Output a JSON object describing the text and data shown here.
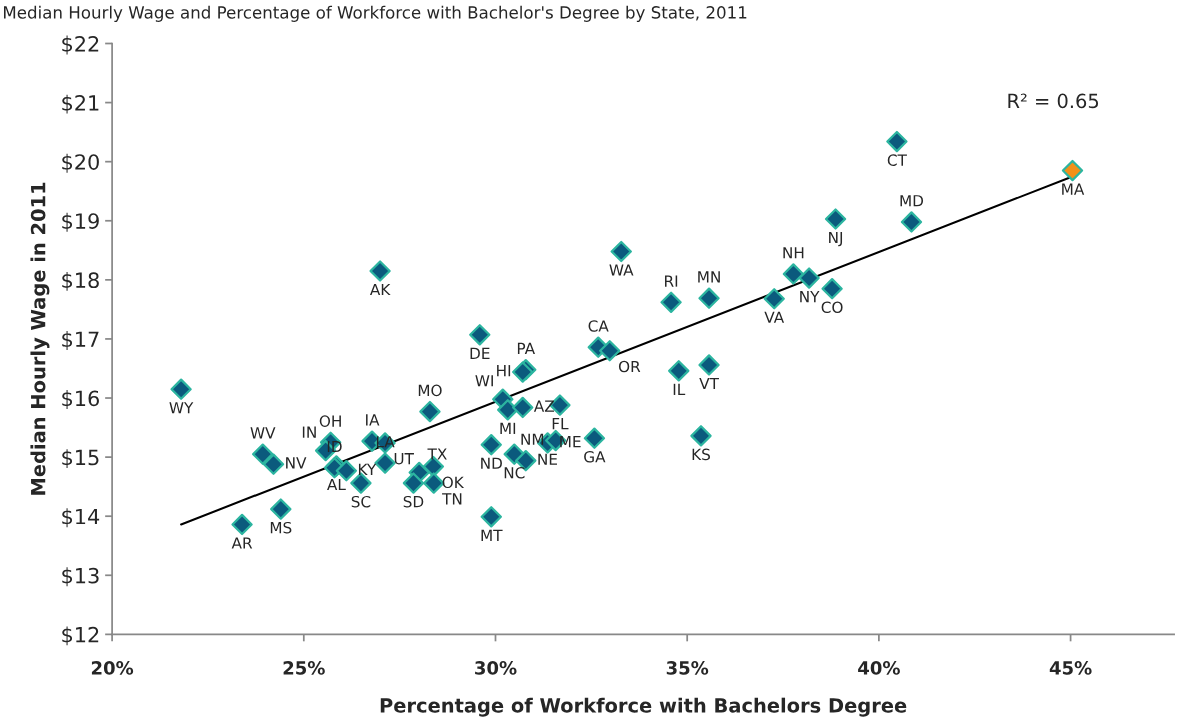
{
  "chart_data": {
    "type": "scatter",
    "title": "Median Hourly Wage and Percentage of Workforce with Bachelor's Degree by State, 2011",
    "xlabel": "Percentage of Workforce with Bachelors Degree",
    "ylabel": "Median Hourly Wage in 2011",
    "annotations": [
      "R² = 0.65"
    ],
    "xlim": [
      20,
      47.7
    ],
    "ylim": [
      12,
      22
    ],
    "xticks": [
      {
        "value": 20,
        "label": "20%"
      },
      {
        "value": 25,
        "label": "25%"
      },
      {
        "value": 30,
        "label": "30%"
      },
      {
        "value": 35,
        "label": "35%"
      },
      {
        "value": 40,
        "label": "40%"
      },
      {
        "value": 45,
        "label": "45%"
      }
    ],
    "yticks": [
      {
        "value": 12,
        "label": "$12"
      },
      {
        "value": 13,
        "label": "$13"
      },
      {
        "value": 14,
        "label": "$14"
      },
      {
        "value": 15,
        "label": "$15"
      },
      {
        "value": 16,
        "label": "$16"
      },
      {
        "value": 17,
        "label": "$17"
      },
      {
        "value": 18,
        "label": "$18"
      },
      {
        "value": 19,
        "label": "$19"
      },
      {
        "value": 20,
        "label": "$20"
      },
      {
        "value": 21,
        "label": "$21"
      },
      {
        "value": 22,
        "label": "$22"
      }
    ],
    "grid": false,
    "legend": false,
    "marker": "diamond",
    "series": [
      {
        "x": [
          21.8,
          23.93,
          24.21,
          23.39,
          24.4,
          25.7,
          25.57,
          25.85,
          25.8,
          26.11,
          26.49,
          26.78,
          27.12,
          27.12,
          28.29,
          28.01,
          28.38,
          27.86,
          28.39,
          26.99,
          29.59,
          30.79,
          30.71,
          30.19,
          30.32,
          30.71,
          31.68,
          29.89,
          30.49,
          30.79,
          31.36,
          31.57,
          32.58,
          29.89,
          32.68,
          32.98,
          33.28,
          34.58,
          35.57,
          34.78,
          35.57,
          35.36,
          37.27,
          37.77,
          38.18,
          38.78,
          38.87,
          40.85,
          40.47,
          45.05
        ],
        "values": [
          16.15,
          15.05,
          14.88,
          13.86,
          14.12,
          15.25,
          15.11,
          14.85,
          14.82,
          14.77,
          14.56,
          15.27,
          15.24,
          14.9,
          15.77,
          14.74,
          14.84,
          14.56,
          14.56,
          18.15,
          17.07,
          16.48,
          16.44,
          15.98,
          15.8,
          15.84,
          15.88,
          15.21,
          15.05,
          14.94,
          15.24,
          15.28,
          15.32,
          13.99,
          16.86,
          16.8,
          18.48,
          17.62,
          17.69,
          16.46,
          16.56,
          15.36,
          17.68,
          18.1,
          18.03,
          17.85,
          19.03,
          18.98,
          20.34,
          19.85
        ],
        "value_labels": [
          "WY",
          "WV",
          "NV",
          "AR",
          "MS",
          "OH",
          "IN",
          "AL",
          "ID",
          "KY",
          "SC",
          "IA",
          "UT",
          "LA",
          "MO",
          "TX",
          "OK",
          "SD",
          "TN",
          "AK",
          "DE",
          "PA",
          "HI",
          "WI",
          "MI",
          "AZ",
          "FL",
          "ND",
          "NC",
          "NE",
          "ME",
          "NM",
          "GA",
          "MT",
          "CA",
          "OR",
          "WA",
          "RI",
          "MN",
          "IL",
          "VT",
          "KS",
          "VA",
          "NH",
          "NY",
          "CO",
          "NJ",
          "MD",
          "CT",
          "MA"
        ],
        "colors": [
          "#0b5a7d",
          "#0b5a7d",
          "#0b5a7d",
          "#0b5a7d",
          "#0b5a7d",
          "#0b5a7d",
          "#0b5a7d",
          "#0b5a7d",
          "#0b5a7d",
          "#0b5a7d",
          "#0b5a7d",
          "#0b5a7d",
          "#0b5a7d",
          "#0b5a7d",
          "#0b5a7d",
          "#0b5a7d",
          "#0b5a7d",
          "#0b5a7d",
          "#0b5a7d",
          "#0b5a7d",
          "#0b5a7d",
          "#0b5a7d",
          "#0b5a7d",
          "#0b5a7d",
          "#0b5a7d",
          "#0b5a7d",
          "#0b5a7d",
          "#0b5a7d",
          "#0b5a7d",
          "#0b5a7d",
          "#0b5a7d",
          "#0b5a7d",
          "#0b5a7d",
          "#0b5a7d",
          "#0b5a7d",
          "#0b5a7d",
          "#0b5a7d",
          "#0b5a7d",
          "#0b5a7d",
          "#0b5a7d",
          "#0b5a7d",
          "#0b5a7d",
          "#0b5a7d",
          "#0b5a7d",
          "#0b5a7d",
          "#0b5a7d",
          "#0b5a7d",
          "#0b5a7d",
          "#0b5a7d",
          "#f39019"
        ]
      },
      {
        "type": "line",
        "color": "#000000",
        "x": [
          21.8,
          45.05
        ],
        "values": [
          13.86,
          19.75
        ],
        "marker": "none",
        "line_style": "solid"
      }
    ]
  }
}
